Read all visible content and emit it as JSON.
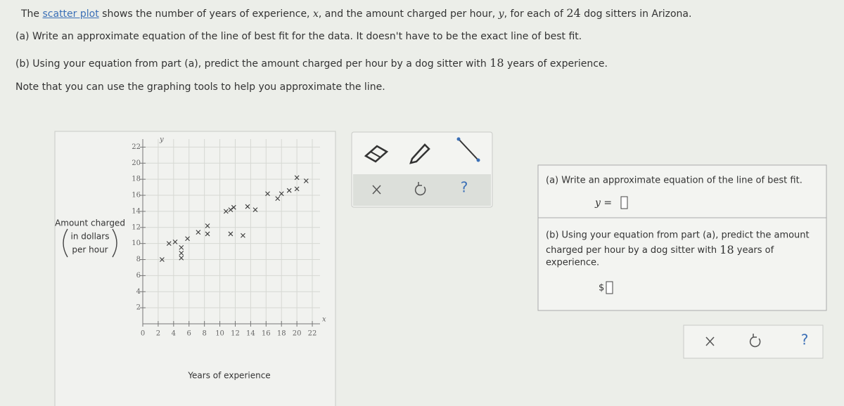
{
  "problem": {
    "intro": [
      "The ",
      "scatter plot",
      " shows the number of years of experience, ",
      "x",
      ", and the amount charged per hour, ",
      "y",
      ", for each of ",
      "24",
      " dog sitters in Arizona."
    ],
    "part_a": "(a) Write an approximate equation of the line of best fit for the data. It doesn't have to be the exact line of best fit.",
    "part_b": [
      "(b) Using your equation from part (a), predict the amount charged per hour by a dog sitter with ",
      "18",
      " years of experience."
    ],
    "note": "Note that you can use the graphing tools to help you approximate the line."
  },
  "chart_data": {
    "type": "scatter",
    "x_label": "Years of experience",
    "x_symbol": "x",
    "y_symbol": "y",
    "y_label": [
      "Amount charged",
      "in dollars",
      "per hour"
    ],
    "x": [
      2.5,
      3.4,
      4.2,
      5,
      5,
      5,
      5.8,
      7.2,
      8.4,
      8.4,
      10.8,
      11.4,
      11.8,
      11.4,
      13,
      13.6,
      14.6,
      16.2,
      17.5,
      18,
      19,
      20,
      20,
      21.2
    ],
    "values": [
      8,
      10,
      10.2,
      9.5,
      8.8,
      8.2,
      10.6,
      11.4,
      12.2,
      11.2,
      14,
      14.2,
      14.5,
      11.2,
      11,
      14.6,
      14.2,
      16.2,
      15.6,
      16.2,
      16.6,
      16.8,
      18.2,
      17.8
    ],
    "color": "#3a3a3a",
    "xlim": [
      0,
      23
    ],
    "ylim": [
      0,
      23
    ],
    "xticks": [
      0,
      2,
      4,
      6,
      8,
      10,
      12,
      14,
      16,
      18,
      20,
      22
    ],
    "yticks": [
      2,
      4,
      6,
      8,
      10,
      12,
      14,
      16,
      18,
      20,
      22
    ],
    "grid": true
  },
  "toolbar": {
    "help": "?"
  },
  "answer_panel": {
    "part_a": "(a) Write an approximate equation of the line of best fit.",
    "equation_prefix": "y =",
    "part_b": [
      "(b) Using your equation from part (a), predict the amount",
      "charged per hour by a dog sitter with ",
      "18",
      " years of",
      "experience."
    ],
    "dollar": "$"
  },
  "footer": {
    "help": "?"
  }
}
